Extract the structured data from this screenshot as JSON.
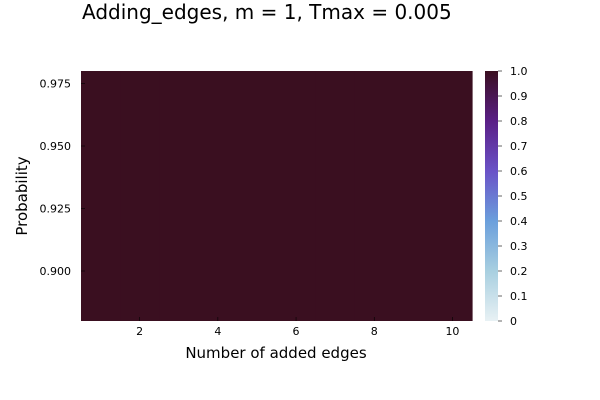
{
  "chart_data": {
    "type": "heatmap",
    "title": "Adding_edges,  m = 1, Tmax = 0.005",
    "xlabel": "Number of added edges",
    "ylabel": "Probability",
    "x": [
      1,
      2,
      3,
      4,
      5,
      6,
      7,
      8,
      9,
      10
    ],
    "y": [
      0.9
    ],
    "values": [
      [
        1,
        1,
        1,
        1,
        1,
        1,
        1,
        1,
        1,
        1
      ]
    ],
    "xlim": [
      0.5,
      10.5
    ],
    "ylim": [
      0.88,
      0.98
    ],
    "xticks": [
      2,
      4,
      6,
      8,
      10
    ],
    "xtick_labels": [
      "2",
      "4",
      "6",
      "8",
      "10"
    ],
    "yticks": [
      0.9,
      0.925,
      0.95,
      0.975
    ],
    "ytick_labels": [
      "0.900",
      "0.925",
      "0.950",
      "0.975"
    ],
    "colorbar": {
      "min": 0,
      "max": 1,
      "ticks": [
        0,
        0.1,
        0.2,
        0.3,
        0.4,
        0.5,
        0.6,
        0.7,
        0.8,
        0.9,
        1.0
      ],
      "tick_labels": [
        "0",
        "0.1",
        "0.2",
        "0.3",
        "0.4",
        "0.5",
        "0.6",
        "0.7",
        "0.8",
        "0.9",
        "1.0"
      ],
      "colormap": [
        "#e8f1f4",
        "#a8cfe0",
        "#6b9fdc",
        "#6a52c7",
        "#5a1f86",
        "#3a0f20"
      ]
    },
    "grid": false,
    "legend": "none"
  }
}
